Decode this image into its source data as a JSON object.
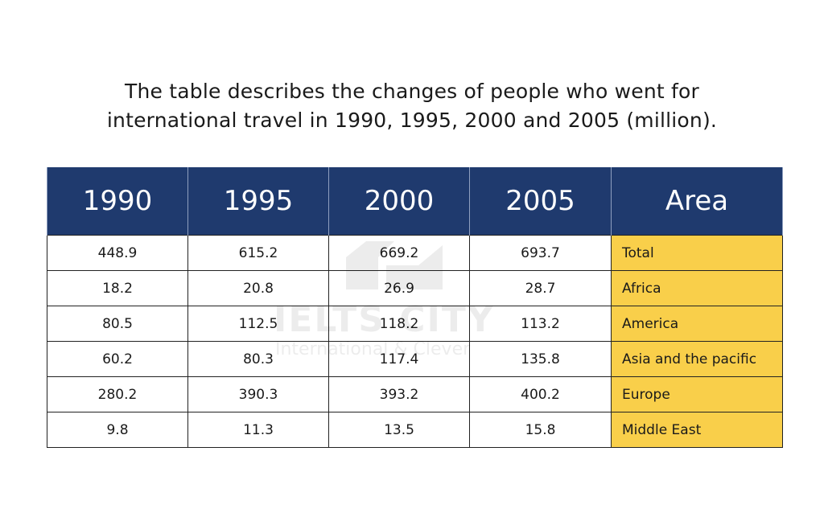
{
  "title_lines": [
    "The table describes the changes of people who went for",
    "international travel in 1990, 1995, 2000 and 2005 (million)."
  ],
  "watermark": {
    "main": "IELTS CITY",
    "sub": "International & Clever"
  },
  "colors": {
    "header_bg": "#1f3a6e",
    "area_bg": "#f9cf4a"
  },
  "chart_data": {
    "type": "table",
    "title": "The table describes the changes of people who went for international travel in 1990, 1995, 2000 and 2005 (million).",
    "columns": [
      "1990",
      "1995",
      "2000",
      "2005",
      "Area"
    ],
    "rows": [
      [
        "448.9",
        "615.2",
        "669.2",
        "693.7",
        "Total"
      ],
      [
        "18.2",
        "20.8",
        "26.9",
        "28.7",
        "Africa"
      ],
      [
        "80.5",
        "112.5",
        "118.2",
        "113.2",
        "America"
      ],
      [
        "60.2",
        "80.3",
        "117.4",
        "135.8",
        "Asia and the pacific"
      ],
      [
        "280.2",
        "390.3",
        "393.2",
        "400.2",
        "Europe"
      ],
      [
        "9.8",
        "11.3",
        "13.5",
        "15.8",
        "Middle East"
      ]
    ]
  }
}
